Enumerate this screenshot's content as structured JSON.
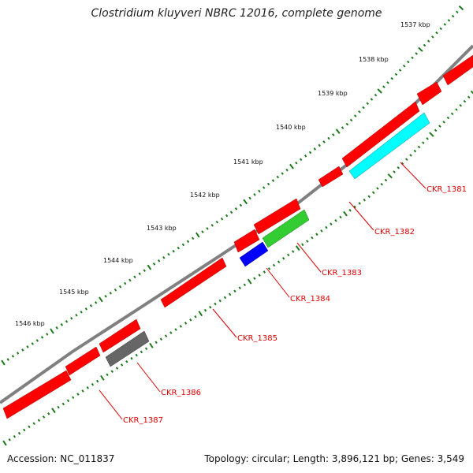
{
  "title": "Clostridium kluyveri NBRC 12016, complete genome",
  "footer": {
    "accession": "Accession: NC_011837",
    "summary": "Topology: circular; Length: 3,896,121 bp; Genes: 3,549"
  },
  "colors": {
    "backbone": "#808080",
    "tick": "#1a7a1a",
    "label": "#dd0000",
    "gene_default": "#ff0000"
  },
  "scale_labels": [
    "1537 kbp",
    "1538 kbp",
    "1539 kbp",
    "1540 kbp",
    "1541 kbp",
    "1542 kbp",
    "1543 kbp",
    "1544 kbp",
    "1545 kbp",
    "1546 kbp"
  ],
  "gene_labels": [
    "CKR_1381",
    "CKR_1382",
    "CKR_1383",
    "CKR_1384",
    "CKR_1385",
    "CKR_1386",
    "CKR_1387"
  ],
  "highlighted_genes": [
    {
      "label": "CKR_1381",
      "color": "#00ffff"
    },
    {
      "label": "CKR_1383",
      "color": "#33cc33"
    },
    {
      "label": "CKR_1384",
      "color": "#0000ff"
    },
    {
      "label": "CKR_1386",
      "color": "#666666"
    }
  ]
}
